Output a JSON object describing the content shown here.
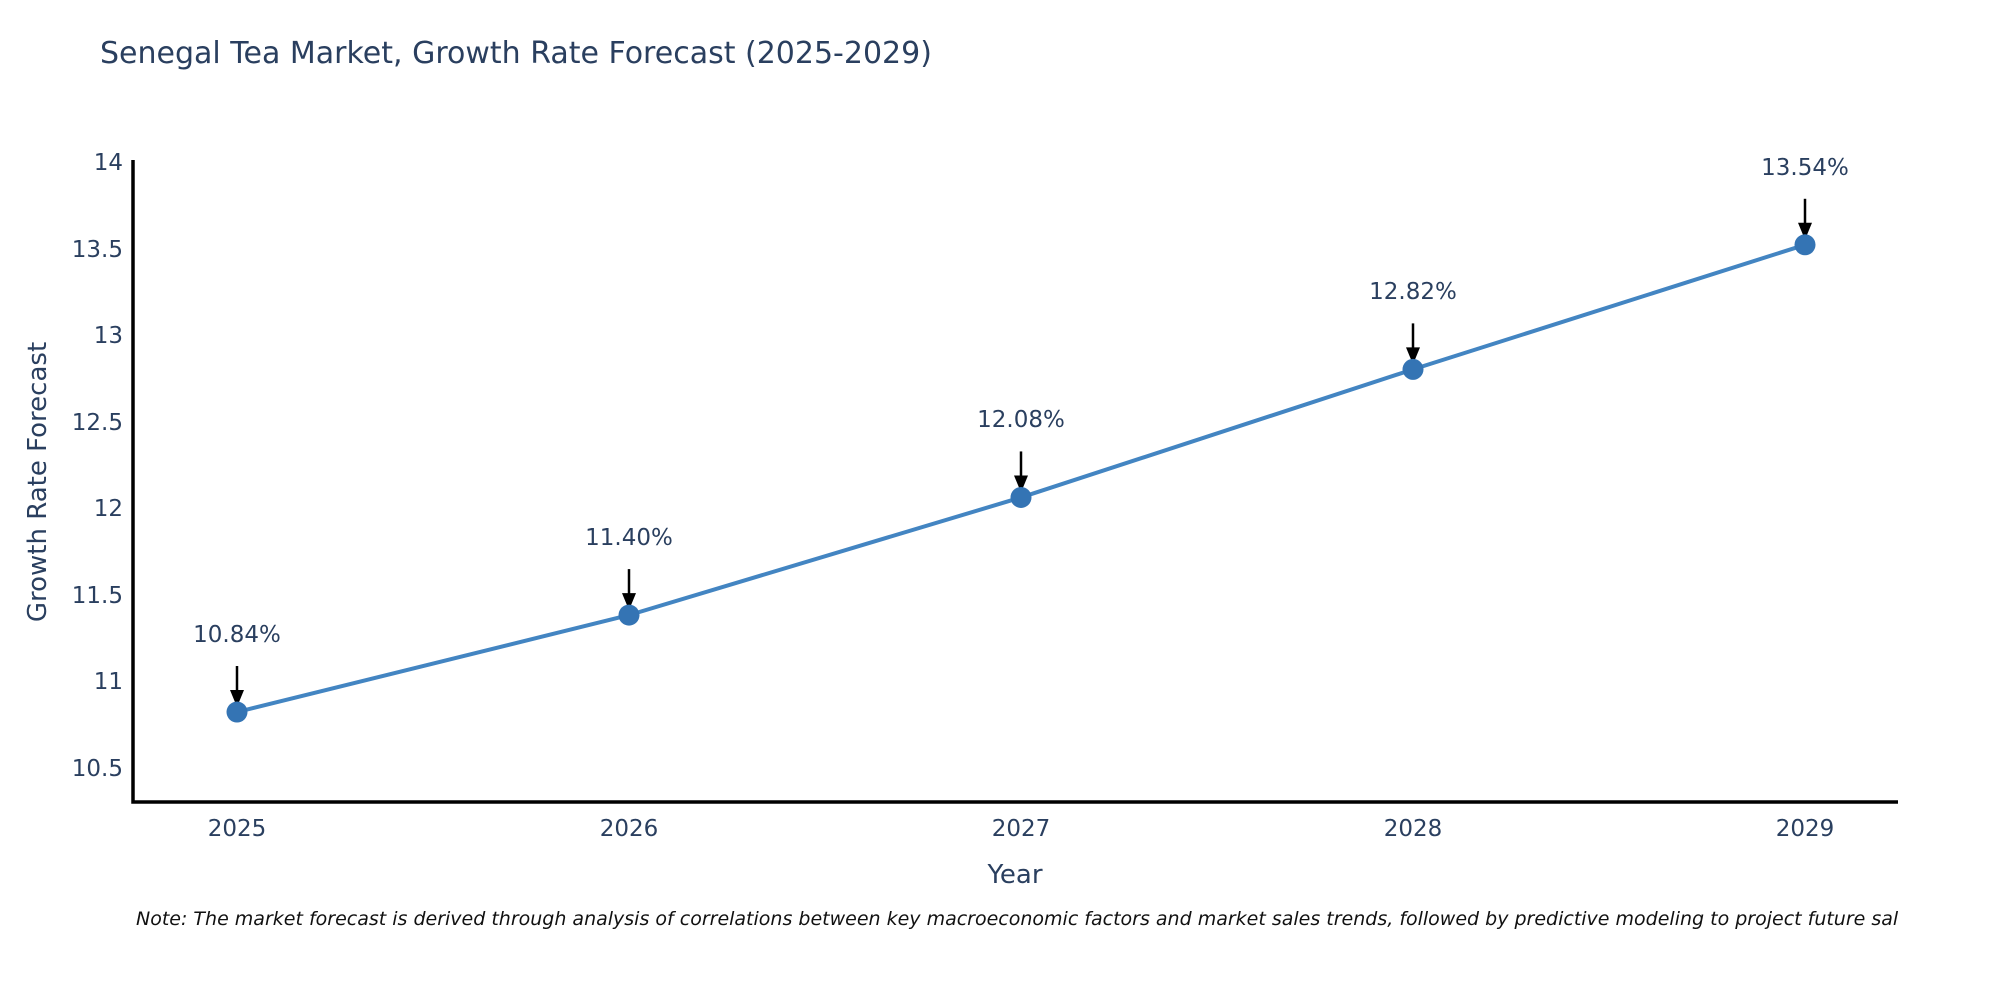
{
  "title": "Senegal Tea Market, Growth Rate Forecast (2025-2029)",
  "note": "Note: The market forecast is derived through analysis of correlations between key macroeconomic factors and market sales trends, followed by predictive modeling to project future sal",
  "chart_data": {
    "type": "line",
    "title": "Senegal Tea Market, Growth Rate Forecast (2025-2029)",
    "xlabel": "Year",
    "ylabel": "Growth Rate Forecast",
    "x": [
      2025,
      2026,
      2027,
      2028,
      2029
    ],
    "xticklabels": [
      "2025",
      "2026",
      "2027",
      "2028",
      "2029"
    ],
    "series": [
      {
        "name": "Growth Rate Forecast",
        "values": [
          10.84,
          11.4,
          12.08,
          12.82,
          13.54
        ]
      }
    ],
    "point_labels": [
      "10.84%",
      "11.40%",
      "12.08%",
      "12.82%",
      "13.54%"
    ],
    "yticks": [
      10.5,
      11,
      11.5,
      12,
      12.5,
      13,
      13.5,
      14
    ],
    "ytick_labels": [
      "10.5",
      "11",
      "11.5",
      "12",
      "12.5",
      "13",
      "13.5",
      "14"
    ],
    "ylim": [
      10.32,
      14.03
    ],
    "grid": false,
    "legend": "none",
    "colors": {
      "line": "#4385c2",
      "marker": "#3474b4",
      "axis": "#000000",
      "arrow": "#000000",
      "text": "#2a3f5f",
      "note_text": "#111111"
    }
  }
}
